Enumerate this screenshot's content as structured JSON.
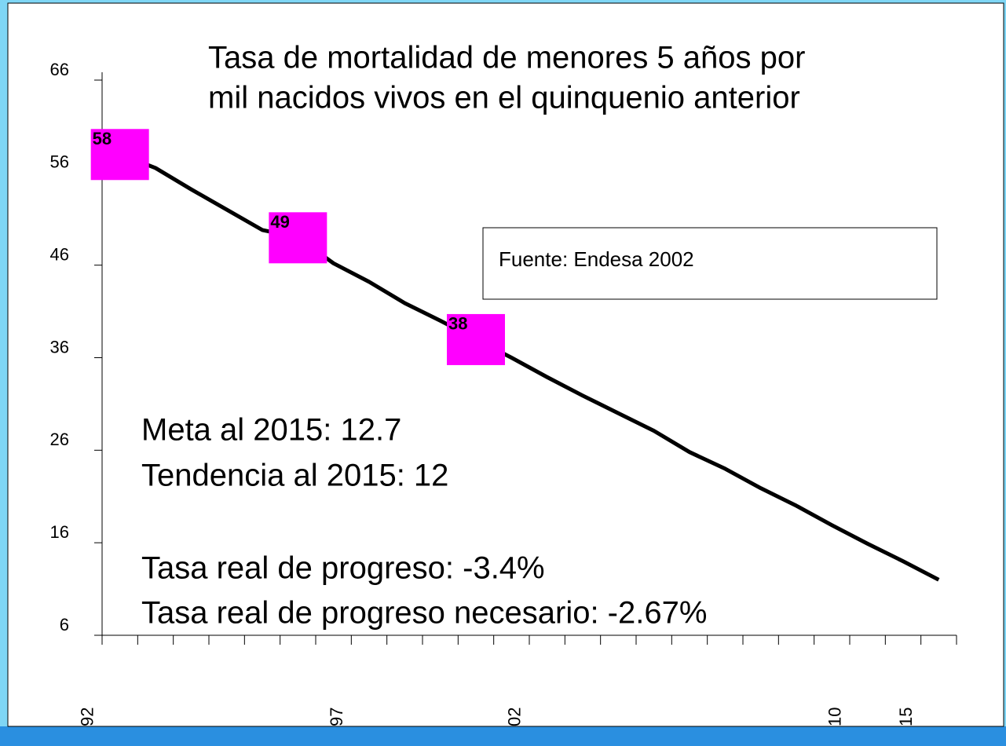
{
  "chart_data": {
    "type": "line",
    "title": [
      "Tasa de mortalidad de menores 5 años por",
      "mil nacidos vivos en el quinquenio anterior"
    ],
    "source": "Fuente: Endesa 2002",
    "annotations": [
      "Meta al 2015: 12.7",
      "Tendencia al 2015: 12",
      "Tasa real de progreso: -3.4%",
      "Tasa real de progreso necesario: -2.67%"
    ],
    "categories": [
      "92",
      null,
      null,
      null,
      null,
      null,
      null,
      "97",
      null,
      null,
      null,
      null,
      "02",
      null,
      null,
      null,
      null,
      null,
      null,
      null,
      null,
      "10",
      null,
      "15"
    ],
    "series": [
      {
        "name": "Tasa de mortalidad",
        "color": "#000000",
        "marker_color": "#ff00ff",
        "values": [
          58,
          56.5,
          54.2,
          52,
          49.8,
          49,
          46.2,
          44.2,
          41.9,
          40,
          38,
          36,
          33.9,
          31.9,
          30,
          28.1,
          25.8,
          24,
          21.9,
          20,
          17.9,
          15.9,
          14,
          12
        ],
        "value_labels": [
          "58",
          null,
          null,
          null,
          null,
          "49",
          null,
          null,
          null,
          null,
          "38",
          null,
          null,
          null,
          null,
          null,
          null,
          null,
          null,
          null,
          null,
          null,
          null,
          null
        ]
      }
    ],
    "ylim": [
      6,
      66
    ],
    "yticks": [
      6,
      16,
      26,
      36,
      46,
      56,
      66
    ]
  }
}
